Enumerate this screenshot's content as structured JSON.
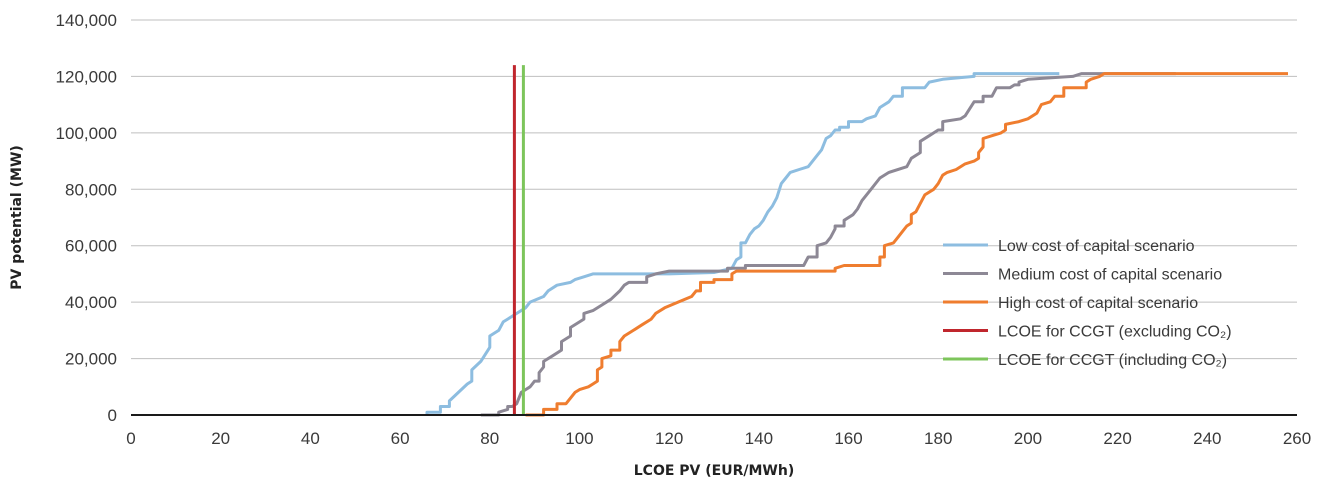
{
  "chart_data": {
    "type": "line",
    "title": "",
    "xlabel": "LCOE PV (EUR/MWh)",
    "ylabel": "PV potential (MW)",
    "xlim": [
      0,
      260
    ],
    "ylim": [
      0,
      140000
    ],
    "xticks": [
      "0",
      "20",
      "40",
      "60",
      "80",
      "100",
      "120",
      "140",
      "160",
      "180",
      "200",
      "220",
      "240",
      "260"
    ],
    "yticks": [
      "0",
      "20,000",
      "40,000",
      "60,000",
      "80,000",
      "100,000",
      "120,000",
      "140,000"
    ],
    "grid": "horizontal",
    "legend_position": "bottom-right",
    "series": [
      {
        "name": "Low cost of capital scenario",
        "color": "#8dbde0",
        "points": [
          [
            66,
            0
          ],
          [
            66,
            1000
          ],
          [
            69,
            1000
          ],
          [
            69,
            3000
          ],
          [
            71,
            3000
          ],
          [
            71,
            5000
          ],
          [
            73,
            8000
          ],
          [
            75,
            11000
          ],
          [
            76,
            12000
          ],
          [
            76,
            16000
          ],
          [
            78,
            19000
          ],
          [
            80,
            24000
          ],
          [
            80,
            28000
          ],
          [
            82,
            30000
          ],
          [
            83,
            33000
          ],
          [
            84,
            34000
          ],
          [
            86,
            36000
          ],
          [
            88,
            38000
          ],
          [
            89,
            40000
          ],
          [
            92,
            42000
          ],
          [
            93,
            44000
          ],
          [
            95,
            46000
          ],
          [
            98,
            47000
          ],
          [
            99,
            48000
          ],
          [
            101,
            49000
          ],
          [
            103,
            50000
          ],
          [
            120,
            50000
          ],
          [
            130,
            50500
          ],
          [
            134,
            52000
          ],
          [
            135,
            55000
          ],
          [
            136,
            56000
          ],
          [
            136,
            61000
          ],
          [
            137,
            61000
          ],
          [
            138,
            64000
          ],
          [
            139,
            66000
          ],
          [
            140,
            67000
          ],
          [
            141,
            69000
          ],
          [
            142,
            72000
          ],
          [
            143,
            74000
          ],
          [
            144,
            77000
          ],
          [
            145,
            82000
          ],
          [
            146,
            84000
          ],
          [
            147,
            86000
          ],
          [
            149,
            87000
          ],
          [
            151,
            88000
          ],
          [
            153,
            92000
          ],
          [
            154,
            94000
          ],
          [
            155,
            98000
          ],
          [
            156,
            99000
          ],
          [
            157,
            101000
          ],
          [
            158,
            101000
          ],
          [
            158,
            102000
          ],
          [
            160,
            102000
          ],
          [
            160,
            104000
          ],
          [
            163,
            104000
          ],
          [
            164,
            105000
          ],
          [
            166,
            106000
          ],
          [
            167,
            109000
          ],
          [
            169,
            111000
          ],
          [
            170,
            113000
          ],
          [
            172,
            113000
          ],
          [
            172,
            116000
          ],
          [
            177,
            116000
          ],
          [
            178,
            118000
          ],
          [
            181,
            119000
          ],
          [
            188,
            120000
          ],
          [
            188,
            121000
          ],
          [
            207,
            121000
          ]
        ]
      },
      {
        "name": "Medium cost of capital scenario",
        "color": "#8d8895",
        "points": [
          [
            78,
            0
          ],
          [
            82,
            0
          ],
          [
            82,
            1000
          ],
          [
            84,
            2000
          ],
          [
            84,
            3000
          ],
          [
            85,
            3000
          ],
          [
            86,
            4000
          ],
          [
            87,
            8000
          ],
          [
            89,
            10000
          ],
          [
            90,
            12000
          ],
          [
            91,
            12000
          ],
          [
            91,
            15000
          ],
          [
            92,
            17000
          ],
          [
            92,
            19000
          ],
          [
            94,
            21000
          ],
          [
            96,
            23000
          ],
          [
            96,
            26000
          ],
          [
            98,
            28000
          ],
          [
            98,
            31000
          ],
          [
            100,
            33000
          ],
          [
            101,
            34000
          ],
          [
            101,
            36000
          ],
          [
            103,
            37000
          ],
          [
            105,
            39000
          ],
          [
            107,
            41000
          ],
          [
            109,
            44000
          ],
          [
            110,
            46000
          ],
          [
            111,
            47000
          ],
          [
            115,
            47000
          ],
          [
            115,
            49000
          ],
          [
            117,
            50000
          ],
          [
            120,
            51000
          ],
          [
            133,
            51000
          ],
          [
            133,
            52000
          ],
          [
            137,
            52000
          ],
          [
            137,
            53000
          ],
          [
            150,
            53000
          ],
          [
            151,
            56000
          ],
          [
            153,
            56000
          ],
          [
            153,
            60000
          ],
          [
            155,
            61000
          ],
          [
            156,
            63000
          ],
          [
            157,
            66000
          ],
          [
            157,
            67000
          ],
          [
            159,
            67000
          ],
          [
            159,
            69000
          ],
          [
            161,
            71000
          ],
          [
            162,
            73000
          ],
          [
            163,
            76000
          ],
          [
            164,
            78000
          ],
          [
            165,
            80000
          ],
          [
            167,
            84000
          ],
          [
            169,
            86000
          ],
          [
            173,
            88000
          ],
          [
            174,
            91000
          ],
          [
            176,
            93000
          ],
          [
            176,
            97000
          ],
          [
            178,
            99000
          ],
          [
            179,
            100000
          ],
          [
            180,
            101000
          ],
          [
            181,
            101000
          ],
          [
            181,
            104000
          ],
          [
            185,
            105000
          ],
          [
            186,
            106000
          ],
          [
            188,
            111000
          ],
          [
            190,
            111000
          ],
          [
            190,
            113000
          ],
          [
            192,
            113000
          ],
          [
            193,
            116000
          ],
          [
            196,
            116000
          ],
          [
            197,
            117000
          ],
          [
            198,
            117000
          ],
          [
            198,
            118000
          ],
          [
            200,
            119000
          ],
          [
            210,
            120000
          ],
          [
            212,
            121000
          ],
          [
            233,
            121000
          ]
        ]
      },
      {
        "name": "High cost of capital scenario",
        "color": "#ef7d2f",
        "points": [
          [
            88,
            0
          ],
          [
            92,
            0
          ],
          [
            92,
            2000
          ],
          [
            95,
            2000
          ],
          [
            95,
            4000
          ],
          [
            97,
            4000
          ],
          [
            98,
            6000
          ],
          [
            99,
            8000
          ],
          [
            100,
            9000
          ],
          [
            102,
            10000
          ],
          [
            103,
            11000
          ],
          [
            104,
            12000
          ],
          [
            104,
            16000
          ],
          [
            105,
            17000
          ],
          [
            105,
            20000
          ],
          [
            107,
            21000
          ],
          [
            107,
            23000
          ],
          [
            109,
            23000
          ],
          [
            109,
            26000
          ],
          [
            110,
            28000
          ],
          [
            112,
            30000
          ],
          [
            114,
            32000
          ],
          [
            116,
            34000
          ],
          [
            117,
            36000
          ],
          [
            119,
            38000
          ],
          [
            122,
            40000
          ],
          [
            125,
            42000
          ],
          [
            126,
            44000
          ],
          [
            127,
            44000
          ],
          [
            127,
            47000
          ],
          [
            130,
            47000
          ],
          [
            130,
            48000
          ],
          [
            134,
            48000
          ],
          [
            134,
            50000
          ],
          [
            135,
            51000
          ],
          [
            157,
            51000
          ],
          [
            157,
            52000
          ],
          [
            159,
            53000
          ],
          [
            167,
            53000
          ],
          [
            167,
            56000
          ],
          [
            168,
            56000
          ],
          [
            168,
            60000
          ],
          [
            170,
            61000
          ],
          [
            171,
            63000
          ],
          [
            172,
            65000
          ],
          [
            173,
            67000
          ],
          [
            174,
            68000
          ],
          [
            174,
            71000
          ],
          [
            175,
            72000
          ],
          [
            176,
            75000
          ],
          [
            177,
            78000
          ],
          [
            179,
            80000
          ],
          [
            180,
            82000
          ],
          [
            181,
            85000
          ],
          [
            182,
            86000
          ],
          [
            184,
            87000
          ],
          [
            186,
            89000
          ],
          [
            188,
            90000
          ],
          [
            189,
            91000
          ],
          [
            189,
            93000
          ],
          [
            190,
            95000
          ],
          [
            190,
            98000
          ],
          [
            192,
            99000
          ],
          [
            194,
            100000
          ],
          [
            195,
            101000
          ],
          [
            195,
            103000
          ],
          [
            198,
            104000
          ],
          [
            200,
            105000
          ],
          [
            202,
            107000
          ],
          [
            203,
            110000
          ],
          [
            205,
            111000
          ],
          [
            206,
            113000
          ],
          [
            208,
            113000
          ],
          [
            208,
            116000
          ],
          [
            213,
            116000
          ],
          [
            213,
            118000
          ],
          [
            214,
            119000
          ],
          [
            216,
            120000
          ],
          [
            217,
            121000
          ],
          [
            258,
            121000
          ]
        ]
      },
      {
        "name": "LCOE for CCGT (excluding CO₂)",
        "color": "#c0262d",
        "points": [
          [
            85.5,
            0
          ],
          [
            85.5,
            124000
          ]
        ]
      },
      {
        "name": "LCOE for CCGT (including CO₂)",
        "color": "#7dc55b",
        "points": [
          [
            87.5,
            0
          ],
          [
            87.5,
            124000
          ]
        ]
      }
    ]
  }
}
